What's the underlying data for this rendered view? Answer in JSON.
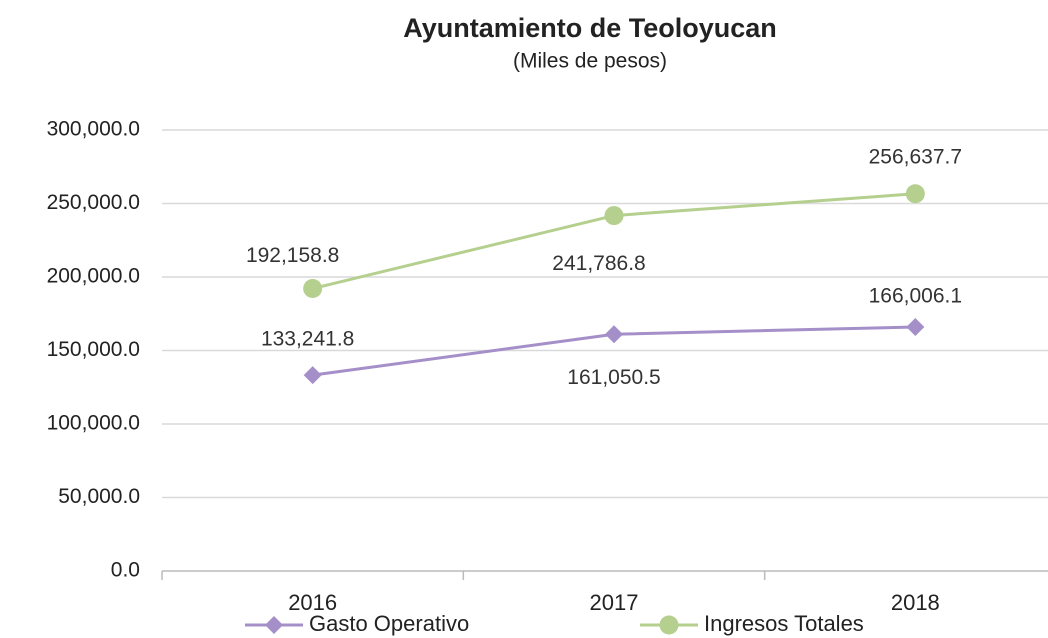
{
  "chart_data": {
    "type": "line",
    "title": "Ayuntamiento  de  Teoloyucan",
    "subtitle": "(Miles de pesos)",
    "categories": [
      "2016",
      "2017",
      "2018"
    ],
    "series": [
      {
        "name": "Gasto Operativo",
        "color": "#a48fc9",
        "marker": "diamond",
        "values": [
          133241.8,
          161050.5,
          166006.1
        ],
        "value_labels": [
          "133,241.8",
          "161,050.5",
          "166,006.1"
        ]
      },
      {
        "name": "Ingresos Totales",
        "color": "#b5cf8e",
        "marker": "circle",
        "values": [
          192158.8,
          241786.8,
          256637.7
        ],
        "value_labels": [
          "192,158.8",
          "241,786.8",
          "256,637.7"
        ]
      }
    ],
    "ylim": [
      0,
      300000
    ],
    "yticks": [
      {
        "value": 0,
        "label": "0.0"
      },
      {
        "value": 50000,
        "label": "50,000.0"
      },
      {
        "value": 100000,
        "label": "100,000.0"
      },
      {
        "value": 150000,
        "label": "150,000.0"
      },
      {
        "value": 200000,
        "label": "200,000.0"
      },
      {
        "value": 250000,
        "label": "250,000.0"
      },
      {
        "value": 300000,
        "label": "300,000.0"
      }
    ],
    "grid": true,
    "legend": "bottom"
  }
}
